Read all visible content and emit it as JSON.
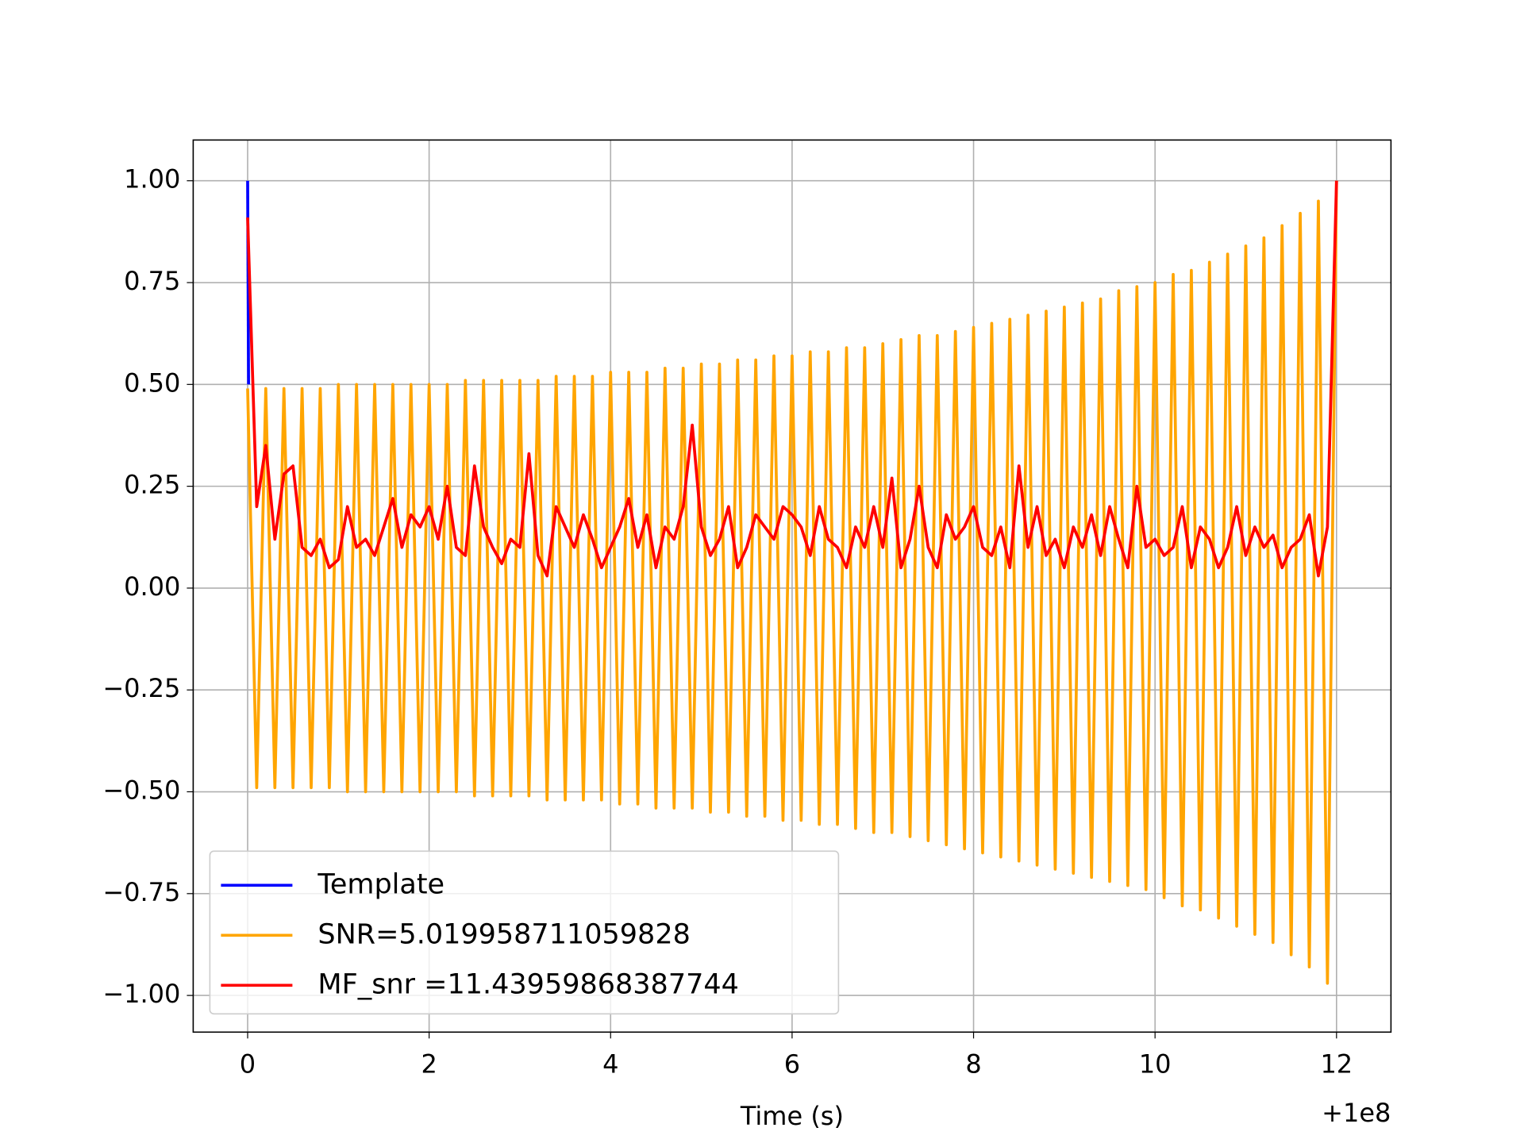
{
  "chart_data": {
    "type": "line",
    "x_label": "Time (s)",
    "x_offset_label": "+1e8",
    "x": [
      0,
      0.1,
      0.2,
      0.3,
      0.4,
      0.5,
      0.6,
      0.7,
      0.8,
      0.9,
      1,
      1.1,
      1.2,
      1.3,
      1.4,
      1.5,
      1.6,
      1.7,
      1.8,
      1.9,
      2,
      2.1,
      2.2,
      2.3,
      2.4,
      2.5,
      2.6,
      2.7,
      2.8,
      2.9,
      3,
      3.1,
      3.2,
      3.3,
      3.4,
      3.5,
      3.6,
      3.7,
      3.8,
      3.9,
      4,
      4.1,
      4.2,
      4.3,
      4.4,
      4.5,
      4.6,
      4.7,
      4.8,
      4.9,
      5,
      5.1,
      5.2,
      5.3,
      5.4,
      5.5,
      5.6,
      5.7,
      5.8,
      5.9,
      6,
      6.1,
      6.2,
      6.3,
      6.4,
      6.5,
      6.6,
      6.7,
      6.8,
      6.9,
      7,
      7.1,
      7.2,
      7.3,
      7.4,
      7.5,
      7.6,
      7.7,
      7.8,
      7.9,
      8,
      8.1,
      8.2,
      8.3,
      8.4,
      8.5,
      8.6,
      8.7,
      8.8,
      8.9,
      9,
      9.1,
      9.2,
      9.3,
      9.4,
      9.5,
      9.6,
      9.7,
      9.8,
      9.9,
      10,
      10.1,
      10.2,
      10.3,
      10.4,
      10.5,
      10.6,
      10.7,
      10.8,
      10.9,
      11,
      11.1,
      11.2,
      11.3,
      11.4,
      11.5,
      11.6,
      11.7,
      11.8,
      11.9,
      12
    ],
    "series": [
      {
        "name": "Template",
        "color": "#0000ff",
        "x": [
          0,
          0.01
        ],
        "values": [
          1.0,
          0.5
        ]
      },
      {
        "name": "SNR=5.019958711059828",
        "color": "#ffa500",
        "values": [
          0.49,
          -0.49,
          0.49,
          -0.49,
          0.49,
          -0.49,
          0.49,
          -0.49,
          0.49,
          -0.49,
          0.5,
          -0.5,
          0.5,
          -0.5,
          0.5,
          -0.5,
          0.5,
          -0.5,
          0.5,
          -0.5,
          0.5,
          -0.5,
          0.5,
          -0.5,
          0.51,
          -0.51,
          0.51,
          -0.51,
          0.51,
          -0.51,
          0.51,
          -0.51,
          0.51,
          -0.52,
          0.52,
          -0.52,
          0.52,
          -0.52,
          0.52,
          -0.52,
          0.53,
          -0.53,
          0.53,
          -0.53,
          0.53,
          -0.54,
          0.54,
          -0.54,
          0.54,
          -0.54,
          0.55,
          -0.55,
          0.55,
          -0.55,
          0.56,
          -0.56,
          0.56,
          -0.56,
          0.57,
          -0.57,
          0.57,
          -0.57,
          0.58,
          -0.58,
          0.58,
          -0.58,
          0.59,
          -0.59,
          0.59,
          -0.6,
          0.6,
          -0.6,
          0.61,
          -0.61,
          0.62,
          -0.62,
          0.62,
          -0.63,
          0.63,
          -0.64,
          0.64,
          -0.65,
          0.65,
          -0.66,
          0.66,
          -0.67,
          0.67,
          -0.68,
          0.68,
          -0.69,
          0.69,
          -0.7,
          0.7,
          -0.71,
          0.71,
          -0.72,
          0.73,
          -0.73,
          0.74,
          -0.74,
          0.75,
          -0.76,
          0.77,
          -0.78,
          0.78,
          -0.79,
          0.8,
          -0.81,
          0.82,
          -0.83,
          0.84,
          -0.85,
          0.86,
          -0.87,
          0.89,
          -0.9,
          0.92,
          -0.93,
          0.95,
          -0.97,
          1.0
        ]
      },
      {
        "name": "MF_snr =11.43959868387744",
        "color": "#ff0000",
        "values": [
          0.91,
          0.2,
          0.35,
          0.12,
          0.28,
          0.3,
          0.1,
          0.08,
          0.12,
          0.05,
          0.07,
          0.2,
          0.1,
          0.12,
          0.08,
          0.15,
          0.22,
          0.1,
          0.18,
          0.15,
          0.2,
          0.12,
          0.25,
          0.1,
          0.08,
          0.3,
          0.15,
          0.1,
          0.06,
          0.12,
          0.1,
          0.33,
          0.08,
          0.03,
          0.2,
          0.15,
          0.1,
          0.18,
          0.12,
          0.05,
          0.1,
          0.15,
          0.22,
          0.1,
          0.18,
          0.05,
          0.15,
          0.12,
          0.2,
          0.4,
          0.15,
          0.08,
          0.12,
          0.2,
          0.05,
          0.1,
          0.18,
          0.15,
          0.12,
          0.2,
          0.18,
          0.15,
          0.08,
          0.2,
          0.12,
          0.1,
          0.05,
          0.15,
          0.1,
          0.2,
          0.1,
          0.27,
          0.05,
          0.12,
          0.25,
          0.1,
          0.05,
          0.18,
          0.12,
          0.15,
          0.2,
          0.1,
          0.08,
          0.15,
          0.05,
          0.3,
          0.1,
          0.2,
          0.08,
          0.12,
          0.05,
          0.15,
          0.1,
          0.18,
          0.08,
          0.2,
          0.12,
          0.05,
          0.25,
          0.1,
          0.12,
          0.08,
          0.1,
          0.2,
          0.05,
          0.15,
          0.12,
          0.05,
          0.1,
          0.2,
          0.08,
          0.15,
          0.1,
          0.13,
          0.05,
          0.1,
          0.12,
          0.18,
          0.03,
          0.15,
          1.0
        ]
      }
    ],
    "xlim": [
      -0.6,
      12.6
    ],
    "xticks": [
      0,
      2,
      4,
      6,
      8,
      10,
      12
    ],
    "ylim": [
      -1.09,
      1.1
    ],
    "yticks": [
      {
        "value": -1,
        "label": "−1.00"
      },
      {
        "value": -0.75,
        "label": "−0.75"
      },
      {
        "value": -0.5,
        "label": "−0.50"
      },
      {
        "value": -0.25,
        "label": "−0.25"
      },
      {
        "value": 0,
        "label": "0.00"
      },
      {
        "value": 0.25,
        "label": "0.25"
      },
      {
        "value": 0.5,
        "label": "0.50"
      },
      {
        "value": 0.75,
        "label": "0.75"
      },
      {
        "value": 1,
        "label": "1.00"
      }
    ],
    "grid": true,
    "legend": "lower left"
  }
}
